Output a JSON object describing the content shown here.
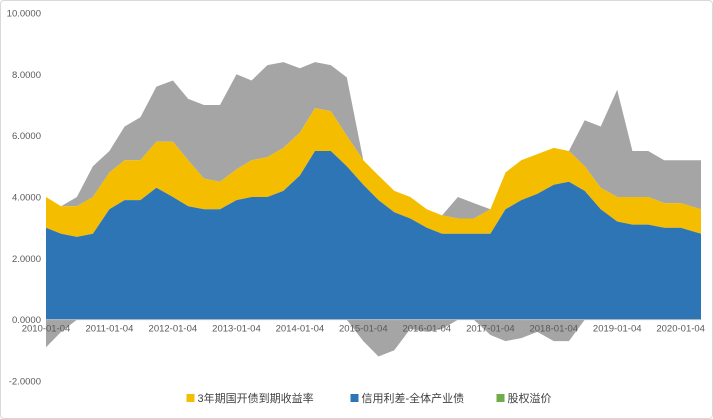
{
  "chart_data": {
    "type": "area",
    "title": "",
    "xlabel": "",
    "ylabel": "",
    "ylim": [
      -2,
      10
    ],
    "y_ticks": [
      "-2.0000",
      "0.0000",
      "2.0000",
      "4.0000",
      "6.0000",
      "8.0000",
      "10.0000"
    ],
    "x_ticks": [
      "2010-01-04",
      "2011-01-04",
      "2012-01-04",
      "2013-01-04",
      "2014-01-04",
      "2015-01-04",
      "2016-01-04",
      "2017-01-04",
      "2018-01-04",
      "2019-01-04",
      "2020-01-04"
    ],
    "x_range": [
      "2010-01-04",
      "2020-04-30"
    ],
    "stacking": "values stacked in legend order from zero upward; negative 股权溢价 drawn below zero",
    "grid": false,
    "legend_position": "bottom",
    "x": [
      "2010-01-04",
      "2010-04-01",
      "2010-07-01",
      "2010-10-01",
      "2011-01-04",
      "2011-04-01",
      "2011-07-01",
      "2011-10-01",
      "2012-01-04",
      "2012-04-01",
      "2012-07-01",
      "2012-10-01",
      "2013-01-04",
      "2013-04-01",
      "2013-07-01",
      "2013-10-01",
      "2014-01-04",
      "2014-04-01",
      "2014-07-01",
      "2014-10-01",
      "2015-01-04",
      "2015-04-01",
      "2015-07-01",
      "2015-10-01",
      "2016-01-04",
      "2016-04-01",
      "2016-07-01",
      "2016-10-01",
      "2017-01-04",
      "2017-04-01",
      "2017-07-01",
      "2017-10-01",
      "2018-01-04",
      "2018-04-01",
      "2018-07-01",
      "2018-10-01",
      "2019-01-04",
      "2019-04-01",
      "2019-07-01",
      "2019-10-01",
      "2020-01-04",
      "2020-04-30"
    ],
    "series": [
      {
        "name": "3年期国开债到期收益率",
        "color": "#f5bd00",
        "values": [
          1.0,
          0.9,
          1.0,
          1.2,
          1.2,
          1.3,
          1.3,
          1.5,
          1.8,
          1.5,
          1.0,
          0.9,
          1.0,
          1.2,
          1.3,
          1.4,
          1.4,
          1.4,
          1.3,
          1.0,
          0.8,
          0.8,
          0.7,
          0.7,
          0.6,
          0.6,
          0.5,
          0.5,
          0.8,
          1.2,
          1.3,
          1.3,
          1.2,
          1.0,
          0.8,
          0.7,
          0.8,
          0.9,
          0.9,
          0.8,
          0.8,
          0.8
        ]
      },
      {
        "name": "信用利差-全体产业债",
        "color": "#2e75b6",
        "values": [
          3.0,
          2.8,
          2.7,
          2.8,
          3.6,
          3.9,
          3.9,
          4.3,
          4.0,
          3.7,
          3.6,
          3.6,
          3.9,
          4.0,
          4.0,
          4.2,
          4.7,
          5.5,
          5.5,
          5.0,
          4.4,
          3.9,
          3.5,
          3.3,
          3.0,
          2.8,
          2.8,
          2.8,
          2.8,
          3.6,
          3.9,
          4.1,
          4.4,
          4.5,
          4.2,
          3.6,
          3.2,
          3.1,
          3.1,
          3.0,
          3.0,
          2.8
        ]
      },
      {
        "name": "股权溢价",
        "color": "#70ad47",
        "values": [
          -0.9,
          -0.4,
          0.3,
          1.0,
          0.7,
          1.1,
          1.4,
          1.8,
          2.0,
          2.0,
          2.4,
          2.5,
          3.1,
          2.6,
          3.0,
          2.8,
          2.1,
          1.5,
          1.5,
          1.9,
          -0.7,
          -1.2,
          -1.0,
          -0.3,
          -0.4,
          -0.3,
          0.7,
          0.5,
          -0.5,
          -0.7,
          -0.6,
          -0.4,
          -0.7,
          -0.7,
          1.5,
          2.0,
          3.5,
          1.5,
          1.5,
          1.4,
          1.4,
          1.6
        ]
      }
    ]
  }
}
